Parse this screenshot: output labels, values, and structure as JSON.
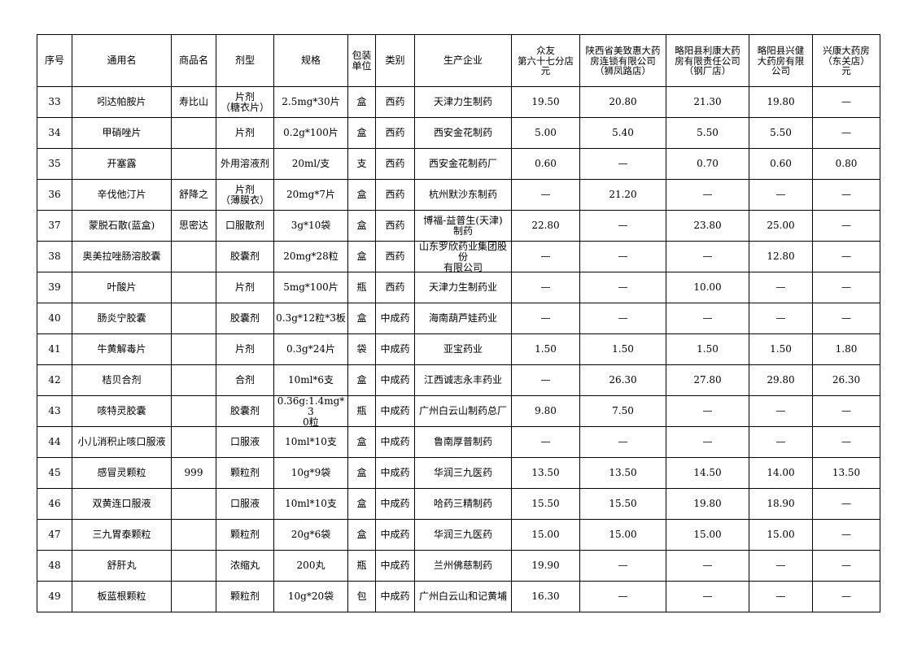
{
  "header": {
    "columns": [
      "序号",
      "通用名",
      "商品名",
      "剂型",
      "规格",
      "包装\n单位",
      "类别",
      "生产企业",
      "众友\n第六十七分店\n元",
      "陕西省美致惠大药\n房连锁有限公司\n（狮凤路店）\n元",
      "略阳县利康大药\n房有限责任公司\n（钢厂店）\n元",
      "略阳县兴健\n大药房有限\n公司\n元",
      "兴康大药房\n（东关店）\n元"
    ]
  },
  "table": {
    "rows": [
      [
        "33",
        "吲达帕胺片",
        "寿比山",
        "片剂\n（糖衣片）",
        "2.5mg*30片",
        "盒",
        "西药",
        "天津力生制药",
        "19.50",
        "20.80",
        "21.30",
        "19.80",
        "—"
      ],
      [
        "34",
        "甲硝唑片",
        null,
        "片剂",
        "0.2g*100片",
        "盒",
        "西药",
        "西安金花制药",
        "5.00",
        "5.40",
        "5.50",
        "5.50",
        "—"
      ],
      [
        "35",
        "开塞露",
        null,
        "外用溶液剂",
        "20ml/支",
        "支",
        "西药",
        "西安金花制药厂",
        "0.60",
        "—",
        "0.70",
        "0.60",
        "0.80"
      ],
      [
        "36",
        "辛伐他汀片",
        "舒降之",
        "片剂\n（薄膜衣）",
        "20mg*7片",
        "盒",
        "西药",
        "杭州默沙东制药",
        "—",
        "21.20",
        "—",
        "—",
        "—"
      ],
      [
        "37",
        "蒙脱石散(蓝盒)",
        "思密达",
        "口服散剂",
        "3g*10袋",
        "盒",
        "西药",
        "博福-益普生(天津)\n制药",
        "22.80",
        "—",
        "23.80",
        "25.00",
        "—"
      ],
      [
        "38",
        "奥美拉唑肠溶胶囊",
        null,
        "胶囊剂",
        "20mg*28粒",
        "盒",
        "西药",
        "山东罗欣药业集团股\n份\n有限公司",
        "—",
        "—",
        "—",
        "12.80",
        "—"
      ],
      [
        "39",
        "叶酸片",
        null,
        "片剂",
        "5mg*100片",
        "瓶",
        "西药",
        "天津力生制药业",
        "—",
        "—",
        "10.00",
        "—",
        "—"
      ],
      [
        "40",
        "肠炎宁胶囊",
        null,
        "胶囊剂",
        "0.3g*12粒*3板",
        "盒",
        "中成药",
        "海南葫芦娃药业",
        "—",
        "—",
        "—",
        "—",
        "—"
      ],
      [
        "41",
        "牛黄解毒片",
        null,
        "片剂",
        "0.3g*24片",
        "袋",
        "中成药",
        "亚宝药业",
        "1.50",
        "1.50",
        "1.50",
        "1.50",
        "1.80"
      ],
      [
        "42",
        "桔贝合剂",
        null,
        "合剂",
        "10ml*6支",
        "盒",
        "中成药",
        "江西诚志永丰药业",
        "—",
        "26.30",
        "27.80",
        "29.80",
        "26.30"
      ],
      [
        "43",
        "咳特灵胶囊",
        null,
        "胶囊剂",
        "0.36g:1.4mg*3\n0粒",
        "瓶",
        "中成药",
        "广州白云山制药总厂",
        "9.80",
        "7.50",
        "—",
        "—",
        "—"
      ],
      [
        "44",
        "小儿消积止咳口服液",
        null,
        "口服液",
        "10ml*10支",
        "盒",
        "中成药",
        "鲁南厚普制药",
        "—",
        "—",
        "—",
        "—",
        "—"
      ],
      [
        "45",
        "感冒灵颗粒",
        "999",
        "颗粒剂",
        "10g*9袋",
        "盒",
        "中成药",
        "华润三九医药",
        "13.50",
        "13.50",
        "14.50",
        "14.00",
        "13.50"
      ],
      [
        "46",
        "双黄连口服液",
        null,
        "口服液",
        "10ml*10支",
        "盒",
        "中成药",
        "哈药三精制药",
        "15.50",
        "15.50",
        "19.80",
        "18.90",
        "—"
      ],
      [
        "47",
        "三九胃泰颗粒",
        null,
        "颗粒剂",
        "20g*6袋",
        "盒",
        "中成药",
        "华润三九医药",
        "15.00",
        "15.00",
        "15.00",
        "15.00",
        "—"
      ],
      [
        "48",
        "舒肝丸",
        null,
        "浓缩丸",
        "200丸",
        "瓶",
        "中成药",
        "兰州佛慈制药",
        "19.90",
        "—",
        "—",
        "—",
        "—"
      ],
      [
        "49",
        "板蓝根颗粒",
        null,
        "颗粒剂",
        "10g*20袋",
        "包",
        "中成药",
        "广州白云山和记黄埔",
        "16.30",
        "—",
        "—",
        "—",
        "—"
      ]
    ]
  }
}
